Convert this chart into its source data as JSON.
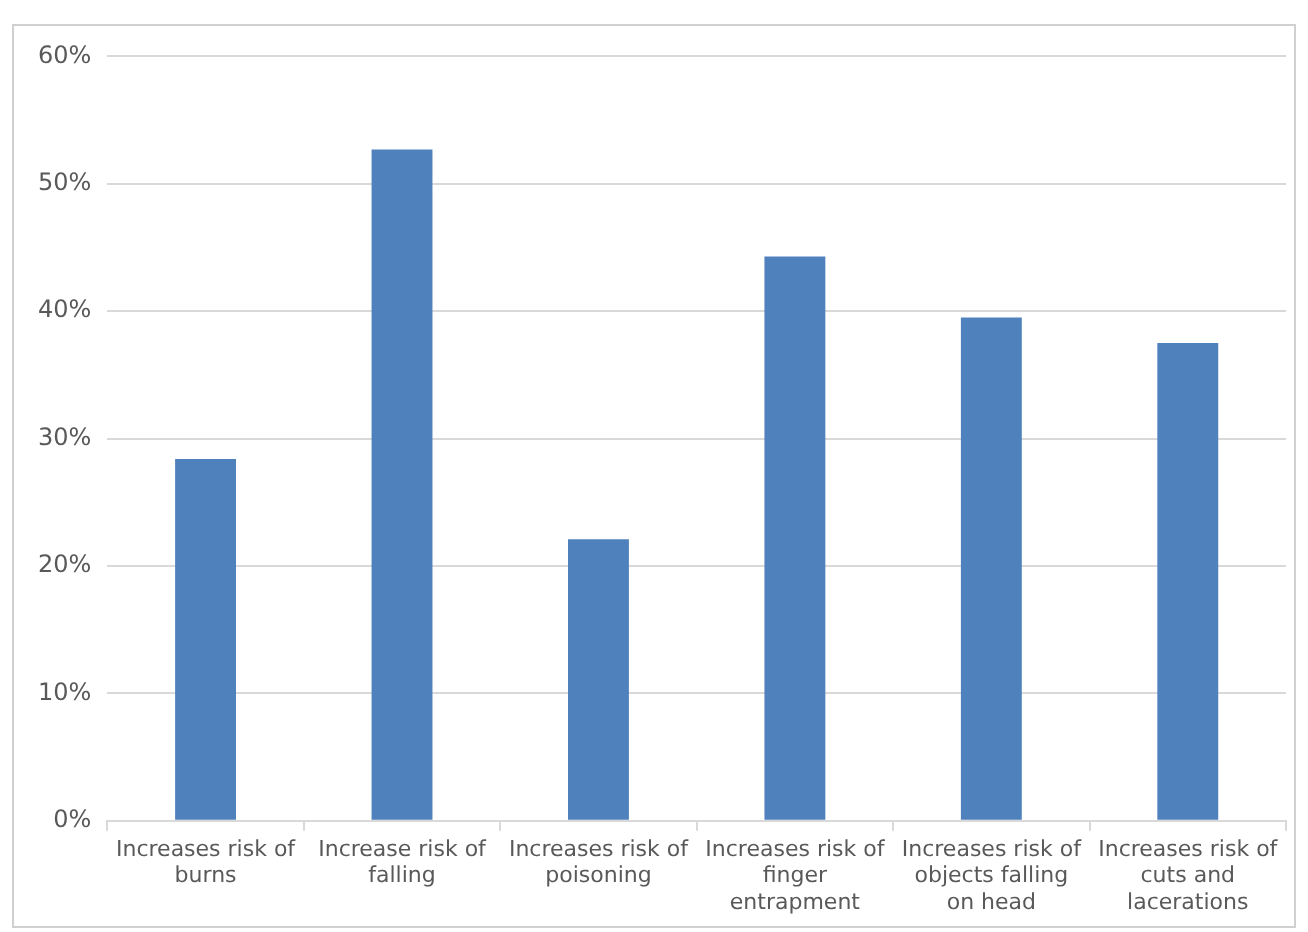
{
  "chart_data": {
    "type": "bar",
    "categories": [
      "Increases risk of burns",
      "Increase risk of falling",
      "Increases risk of poisoning",
      "Increases risk of finger entrapment",
      "Increases risk of objects falling on head",
      "Increases risk of cuts and lacerations"
    ],
    "values": [
      28.4,
      52.7,
      22.1,
      44.3,
      39.5,
      37.5
    ],
    "color": "#4f81bd",
    "ylim": [
      0,
      60
    ],
    "yticks": [
      {
        "value": 0,
        "label": "0%"
      },
      {
        "value": 10,
        "label": "10%"
      },
      {
        "value": 20,
        "label": "20%"
      },
      {
        "value": 30,
        "label": "30%"
      },
      {
        "value": 40,
        "label": "40%"
      },
      {
        "value": 50,
        "label": "50%"
      },
      {
        "value": 60,
        "label": "60%"
      }
    ],
    "grid": "y",
    "legend": false
  }
}
